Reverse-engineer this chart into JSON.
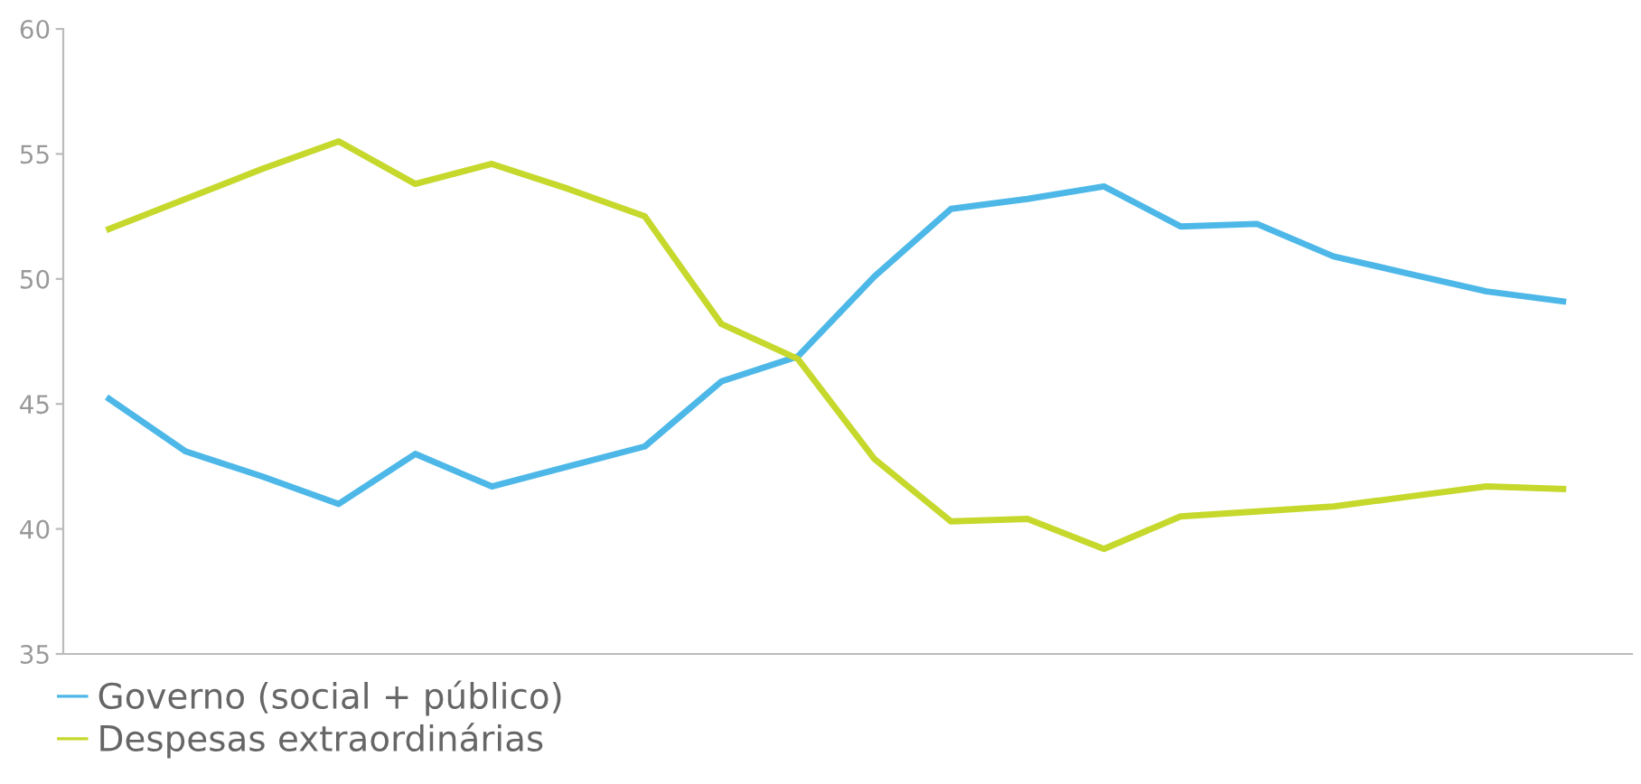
{
  "chart_data": {
    "type": "line",
    "categories": [
      null,
      null,
      null,
      null,
      null,
      null,
      null,
      null,
      null,
      null,
      null,
      null,
      null,
      null,
      null,
      null,
      null,
      null,
      null,
      null
    ],
    "series": [
      {
        "name": "Governo (social + público)",
        "color": "#4db8e8",
        "values": [
          45.2,
          43.1,
          42.1,
          41.0,
          43.0,
          41.7,
          42.5,
          43.3,
          45.9,
          46.9,
          50.1,
          52.8,
          53.2,
          53.7,
          52.1,
          52.2,
          50.9,
          50.2,
          49.5,
          49.1
        ]
      },
      {
        "name": "Despesas extraordinárias",
        "color": "#c5d82b",
        "values": [
          52.0,
          53.2,
          54.4,
          55.5,
          53.8,
          54.6,
          53.6,
          52.5,
          48.2,
          46.8,
          42.8,
          40.3,
          40.4,
          39.2,
          40.5,
          40.7,
          40.9,
          41.3,
          41.7,
          41.6
        ]
      }
    ],
    "ylim": [
      35,
      60
    ],
    "yticks": [
      35,
      40,
      45,
      50,
      55,
      60
    ],
    "grid": false,
    "legend": "bottom left",
    "marker": "none",
    "line_style": "solid"
  }
}
